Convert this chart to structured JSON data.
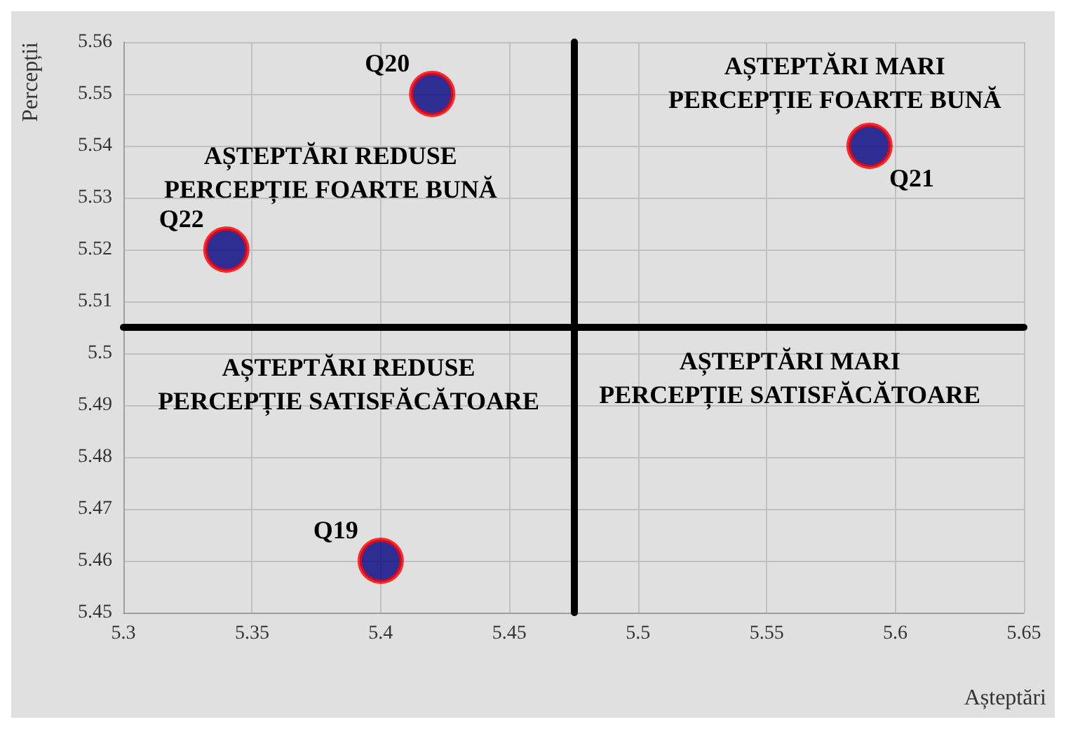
{
  "chart_data": {
    "type": "scatter",
    "xlabel": "Așteptări",
    "ylabel": "Percepții",
    "series": [
      {
        "color": "#000080",
        "x": [
          5.42,
          5.59,
          5.34,
          5.4
        ],
        "values": [
          5.55,
          5.54,
          5.52,
          5.46
        ]
      }
    ],
    "xlim": [
      5.3,
      5.65
    ],
    "xticks": [
      5.3,
      5.35,
      5.4,
      5.45,
      5.5,
      5.55,
      5.6,
      5.65
    ],
    "ylim": [
      5.45,
      5.56
    ],
    "yticks": [
      5.45,
      5.46,
      5.47,
      5.48,
      5.49,
      5.5,
      5.51,
      5.52,
      5.53,
      5.54,
      5.55,
      5.56
    ],
    "grid": true,
    "marker": "circle",
    "ref_lines": [
      {
        "axis": "x",
        "value": 5.475,
        "color": "#000000"
      },
      {
        "axis": "y",
        "value": 5.505,
        "color": "#000000"
      }
    ],
    "annotations": [
      {
        "text": "Q20",
        "x": 5.42,
        "y": 5.55
      },
      {
        "text": "Q21",
        "x": 5.59,
        "y": 5.54
      },
      {
        "text": "Q22",
        "x": 5.34,
        "y": 5.52
      },
      {
        "text": "Q19",
        "x": 5.4,
        "y": 5.46
      },
      "AȘTEPTĂRI REDUSE\nPERCEPȚIE FOARTE BUNĂ",
      "AȘTEPTĂRI MARI\nPERCEPȚIE FOARTE BUNĂ",
      "AȘTEPTĂRI REDUSE\nPERCEPȚIE SATISFĂCĂTOARE",
      "AȘTEPTĂRI MARI\nPERCEPȚIE SATISFĂCĂTOARE"
    ]
  }
}
